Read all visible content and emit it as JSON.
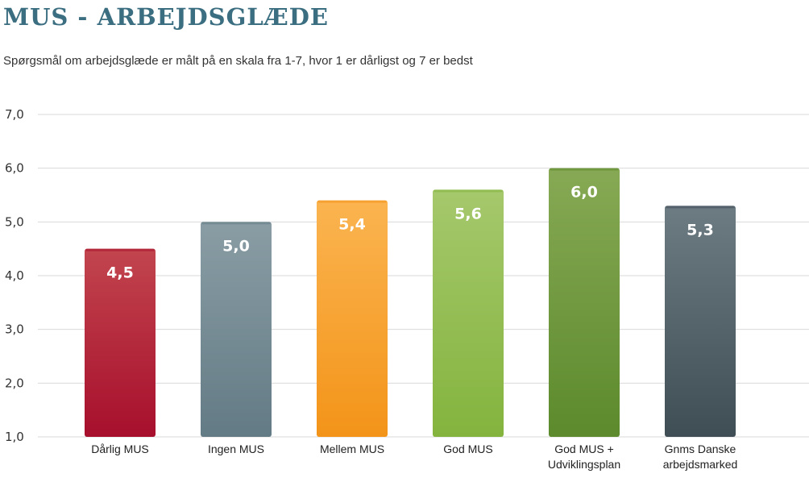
{
  "title": "MUS - ARBEJDSGLÆDE",
  "subtitle": "Spørgsmål om arbejdsglæde er målt på en skala fra 1-7, hvor 1 er dårligst og 7 er bedst",
  "chart_data": {
    "type": "bar",
    "title": "MUS - ARBEJDSGLÆDE",
    "subtitle": "Spørgsmål om arbejdsglæde er målt på en skala fra 1-7, hvor 1 er dårligst og 7 er bedst",
    "categories": [
      [
        "Dårlig MUS"
      ],
      [
        "Ingen MUS"
      ],
      [
        "Mellem MUS"
      ],
      [
        "God MUS"
      ],
      [
        "God MUS +",
        "Udviklingsplan"
      ],
      [
        "Gnms Danske",
        "arbejdsmarked"
      ]
    ],
    "values": [
      4.5,
      5.0,
      5.4,
      5.6,
      6.0,
      5.3
    ],
    "value_labels": [
      "4,5",
      "5,0",
      "5,4",
      "5,6",
      "6,0",
      "5,3"
    ],
    "ylim": [
      1,
      7
    ],
    "y_ticks": [
      1,
      2,
      3,
      4,
      5,
      6,
      7
    ],
    "y_tick_labels": [
      "1,0",
      "2,0",
      "3,0",
      "4,0",
      "5,0",
      "6,0",
      "7,0"
    ],
    "grid": true,
    "xlabel": "",
    "ylabel": "",
    "bar_colors": [
      [
        "#c2454e",
        "#a70f2c"
      ],
      [
        "#8a9da5",
        "#637b85"
      ],
      [
        "#fbb450",
        "#f39419"
      ],
      [
        "#a5c86c",
        "#84b43e"
      ],
      [
        "#87a955",
        "#5c8a2c"
      ],
      [
        "#6d7b83",
        "#3f4d55"
      ]
    ],
    "grid_color": "#d9d9d9"
  }
}
